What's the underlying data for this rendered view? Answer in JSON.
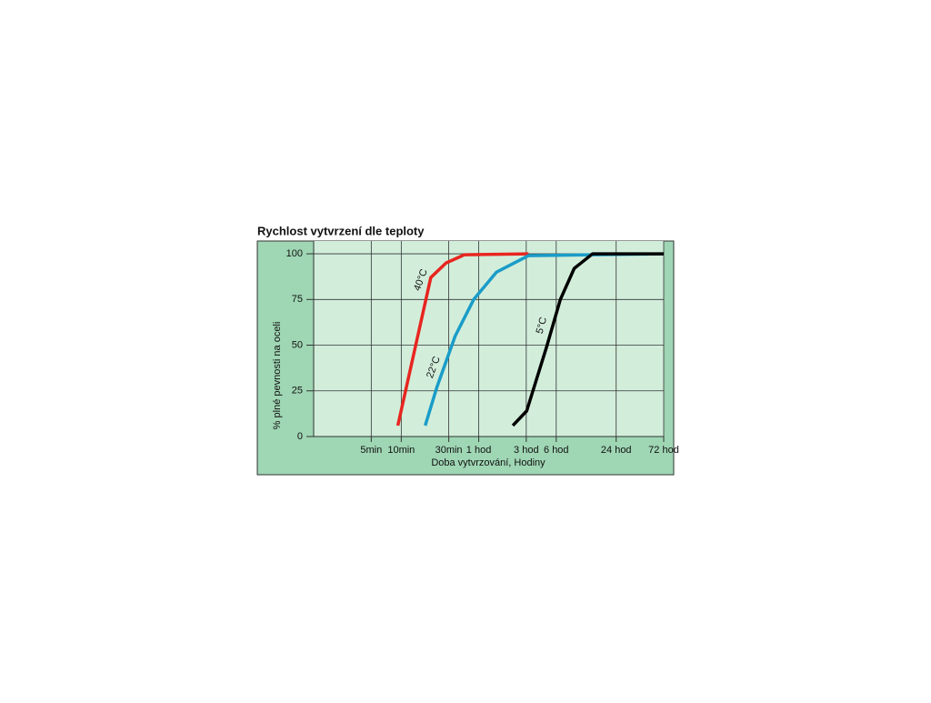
{
  "chart_data": {
    "type": "line",
    "title": "Rychlost vytvrzení dle teploty",
    "xlabel": "Doba vytvrzování, Hodiny",
    "ylabel": "% plné pevnosti na oceli",
    "xscale": "log",
    "xlim": [
      0.022,
      72
    ],
    "ylim": [
      0,
      107
    ],
    "xticks": [
      {
        "value": 0.0833,
        "label": "5min"
      },
      {
        "value": 0.1667,
        "label": "10min"
      },
      {
        "value": 0.5,
        "label": "30min"
      },
      {
        "value": 1,
        "label": "1 hod"
      },
      {
        "value": 3,
        "label": "3 hod"
      },
      {
        "value": 6,
        "label": "6 hod"
      },
      {
        "value": 24,
        "label": "24 hod"
      },
      {
        "value": 72,
        "label": "72 hod"
      }
    ],
    "yticks": [
      0,
      25,
      50,
      75,
      100
    ],
    "grid": true,
    "series": [
      {
        "name": "40°C",
        "color": "#e8251f",
        "x": [
          0.154,
          0.33,
          0.47,
          0.72,
          3.16
        ],
        "values": [
          6,
          87,
          95,
          99.5,
          100
        ]
      },
      {
        "name": "22°C",
        "color": "#1a9cc8",
        "x": [
          0.29,
          0.38,
          0.58,
          0.89,
          1.51,
          3.16,
          72
        ],
        "values": [
          6,
          27,
          55,
          75,
          90,
          99,
          100
        ]
      },
      {
        "name": "5°C",
        "color": "#000000",
        "x": [
          2.2,
          3.03,
          4.8,
          6.6,
          9.1,
          13.9,
          72
        ],
        "values": [
          6,
          14,
          49,
          75,
          92,
          100,
          100
        ]
      }
    ]
  }
}
